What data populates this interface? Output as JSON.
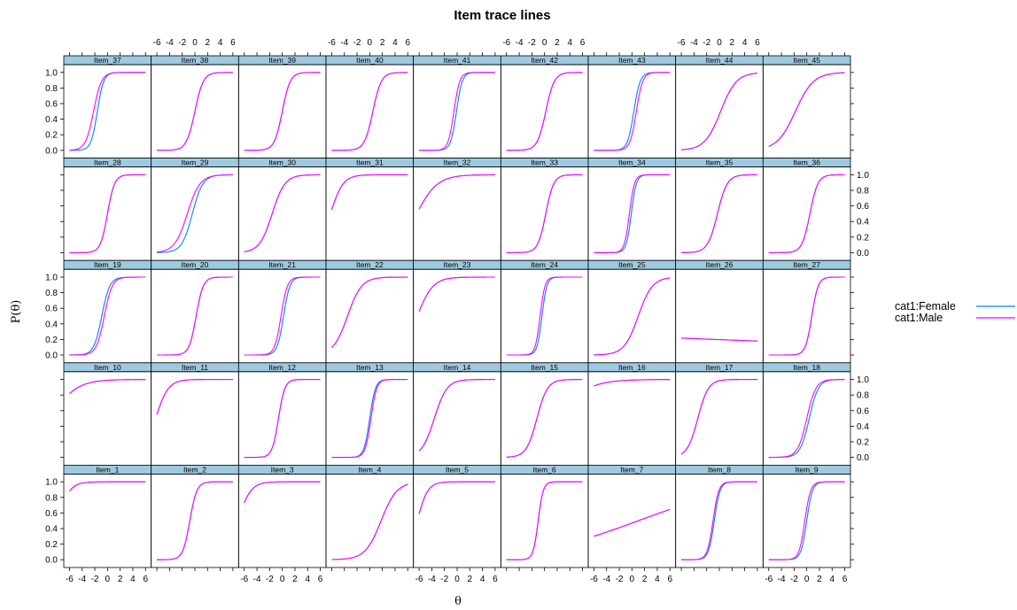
{
  "chart_data": {
    "type": "line",
    "title": "Item trace lines",
    "xlabel": "θ",
    "ylabel": "P(θ)",
    "xlim": [
      -6.9,
      6.9
    ],
    "ylim": [
      -0.1,
      1.1
    ],
    "xticks": [
      -6,
      -4,
      -2,
      0,
      2,
      4,
      6
    ],
    "yticks": [
      0.0,
      0.2,
      0.4,
      0.6,
      0.8,
      1.0
    ],
    "xtick_labels": [
      "-6",
      "-4",
      "-2",
      "0",
      "2",
      "4",
      "6"
    ],
    "ytick_labels": [
      "0.0",
      "0.2",
      "0.4",
      "0.6",
      "0.8",
      "1.0"
    ],
    "layout": {
      "columns": 9,
      "rows": 5
    },
    "groups": [
      {
        "name": "cat1:Female",
        "color": "#0080ff"
      },
      {
        "name": "cat1:Male",
        "color": "#ff00ff"
      }
    ],
    "legend_position": "right",
    "panels": [
      {
        "label": "Item_37",
        "params": [
          [
            2.0,
            -1.6,
            0
          ],
          [
            1.6,
            -2.2,
            0
          ]
        ]
      },
      {
        "label": "Item_38",
        "params": [
          [
            1.5,
            0.0,
            0
          ],
          [
            1.5,
            0.0,
            0
          ]
        ]
      },
      {
        "label": "Item_39",
        "params": [
          [
            1.6,
            0.0,
            0
          ],
          [
            1.6,
            0.0,
            0
          ]
        ]
      },
      {
        "label": "Item_40",
        "params": [
          [
            1.5,
            0.5,
            0
          ],
          [
            1.5,
            0.5,
            0
          ]
        ]
      },
      {
        "label": "Item_41",
        "params": [
          [
            2.2,
            -0.1,
            0
          ],
          [
            2.2,
            -0.5,
            0
          ]
        ]
      },
      {
        "label": "Item_42",
        "params": [
          [
            1.5,
            0.2,
            0
          ],
          [
            1.5,
            0.2,
            0
          ]
        ]
      },
      {
        "label": "Item_43",
        "params": [
          [
            2.0,
            0.3,
            0
          ],
          [
            2.0,
            0.7,
            0
          ]
        ]
      },
      {
        "label": "Item_44",
        "params": [
          [
            0.8,
            0.2,
            0
          ],
          [
            0.8,
            0.2,
            0
          ]
        ]
      },
      {
        "label": "Item_45",
        "params": [
          [
            0.7,
            -1.8,
            0
          ],
          [
            0.7,
            -1.8,
            0
          ]
        ]
      },
      {
        "label": "Item_28",
        "params": [
          [
            1.8,
            0.0,
            0
          ],
          [
            1.8,
            0.0,
            0
          ]
        ]
      },
      {
        "label": "Item_29",
        "params": [
          [
            1.2,
            -0.4,
            0
          ],
          [
            1.0,
            -1.2,
            0
          ]
        ]
      },
      {
        "label": "Item_30",
        "params": [
          [
            1.0,
            -1.6,
            0
          ],
          [
            1.0,
            -1.6,
            0
          ]
        ]
      },
      {
        "label": "Item_31",
        "params": [
          [
            1.0,
            -6.2,
            0
          ],
          [
            1.0,
            -6.2,
            0
          ]
        ]
      },
      {
        "label": "Item_32",
        "params": [
          [
            0.6,
            -6.4,
            0
          ],
          [
            0.6,
            -6.4,
            0
          ]
        ]
      },
      {
        "label": "Item_33",
        "params": [
          [
            1.6,
            0.2,
            0
          ],
          [
            1.6,
            0.2,
            0
          ]
        ]
      },
      {
        "label": "Item_34",
        "params": [
          [
            2.5,
            -0.1,
            0
          ],
          [
            2.5,
            -0.4,
            0
          ]
        ]
      },
      {
        "label": "Item_35",
        "params": [
          [
            1.3,
            -0.3,
            0
          ],
          [
            1.3,
            -0.3,
            0
          ]
        ]
      },
      {
        "label": "Item_36",
        "params": [
          [
            1.6,
            0.5,
            0
          ],
          [
            1.6,
            0.5,
            0
          ]
        ]
      },
      {
        "label": "Item_19",
        "params": [
          [
            1.6,
            -0.9,
            0
          ],
          [
            1.6,
            -0.5,
            0
          ]
        ]
      },
      {
        "label": "Item_20",
        "params": [
          [
            1.8,
            0.2,
            0
          ],
          [
            1.8,
            0.2,
            0
          ]
        ]
      },
      {
        "label": "Item_21",
        "params": [
          [
            2.0,
            0.2,
            0
          ],
          [
            2.0,
            -0.2,
            0
          ]
        ]
      },
      {
        "label": "Item_22",
        "params": [
          [
            0.9,
            -3.5,
            0
          ],
          [
            0.9,
            -3.5,
            0
          ]
        ]
      },
      {
        "label": "Item_23",
        "params": [
          [
            0.8,
            -6.3,
            0
          ],
          [
            0.8,
            -6.3,
            0
          ]
        ]
      },
      {
        "label": "Item_24",
        "params": [
          [
            2.6,
            -0.4,
            0
          ],
          [
            2.6,
            -0.7,
            0
          ]
        ]
      },
      {
        "label": "Item_25",
        "params": [
          [
            0.9,
            1.0,
            0
          ],
          [
            0.9,
            1.0,
            0
          ]
        ]
      },
      {
        "label": "Item_26",
        "params": [
          [
            -0.02,
            -70,
            0
          ],
          [
            -0.02,
            -70,
            0
          ]
        ]
      },
      {
        "label": "Item_27",
        "params": [
          [
            2.0,
            0.8,
            0
          ],
          [
            2.0,
            0.8,
            0
          ]
        ]
      },
      {
        "label": "Item_10",
        "params": [
          [
            0.5,
            -9.0,
            0
          ],
          [
            0.5,
            -9.0,
            0
          ]
        ]
      },
      {
        "label": "Item_11",
        "params": [
          [
            1.0,
            -6.2,
            0
          ],
          [
            1.0,
            -6.2,
            0
          ]
        ]
      },
      {
        "label": "Item_12",
        "params": [
          [
            2.0,
            -0.6,
            0
          ],
          [
            2.0,
            -0.6,
            0
          ]
        ]
      },
      {
        "label": "Item_13",
        "params": [
          [
            2.2,
            0.0,
            0
          ],
          [
            2.2,
            0.2,
            0
          ]
        ]
      },
      {
        "label": "Item_14",
        "params": [
          [
            1.0,
            -3.6,
            0
          ],
          [
            1.0,
            -3.6,
            0
          ]
        ]
      },
      {
        "label": "Item_15",
        "params": [
          [
            1.2,
            -1.2,
            0
          ],
          [
            1.2,
            -1.2,
            0
          ]
        ]
      },
      {
        "label": "Item_16",
        "params": [
          [
            0.4,
            -12,
            0
          ],
          [
            0.4,
            -12,
            0
          ]
        ]
      },
      {
        "label": "Item_17",
        "params": [
          [
            1.2,
            -3.4,
            0
          ],
          [
            1.2,
            -3.4,
            0
          ]
        ]
      },
      {
        "label": "Item_18",
        "params": [
          [
            1.4,
            0.4,
            0
          ],
          [
            1.4,
            0.0,
            0
          ]
        ]
      },
      {
        "label": "Item_1",
        "params": [
          [
            1.0,
            -8.0,
            0
          ],
          [
            1.0,
            -8.0,
            0
          ]
        ]
      },
      {
        "label": "Item_2",
        "params": [
          [
            1.8,
            -0.8,
            0
          ],
          [
            1.8,
            -0.8,
            0
          ]
        ]
      },
      {
        "label": "Item_3",
        "params": [
          [
            1.0,
            -7.0,
            0
          ],
          [
            1.0,
            -7.0,
            0
          ]
        ]
      },
      {
        "label": "Item_4",
        "params": [
          [
            0.8,
            1.8,
            0
          ],
          [
            0.8,
            1.8,
            0
          ]
        ]
      },
      {
        "label": "Item_5",
        "params": [
          [
            1.2,
            -6.3,
            0
          ],
          [
            1.2,
            -6.3,
            0
          ]
        ]
      },
      {
        "label": "Item_6",
        "params": [
          [
            2.5,
            -1.0,
            0
          ],
          [
            2.5,
            -1.0,
            0
          ]
        ]
      },
      {
        "label": "Item_7",
        "params": [
          [
            0.12,
            1.0,
            0
          ],
          [
            0.12,
            1.0,
            0
          ]
        ]
      },
      {
        "label": "Item_8",
        "params": [
          [
            2.2,
            -0.8,
            0
          ],
          [
            2.2,
            -1.0,
            0
          ]
        ]
      },
      {
        "label": "Item_9",
        "params": [
          [
            2.2,
            0.0,
            0
          ],
          [
            2.2,
            -0.3,
            0
          ]
        ]
      }
    ]
  }
}
